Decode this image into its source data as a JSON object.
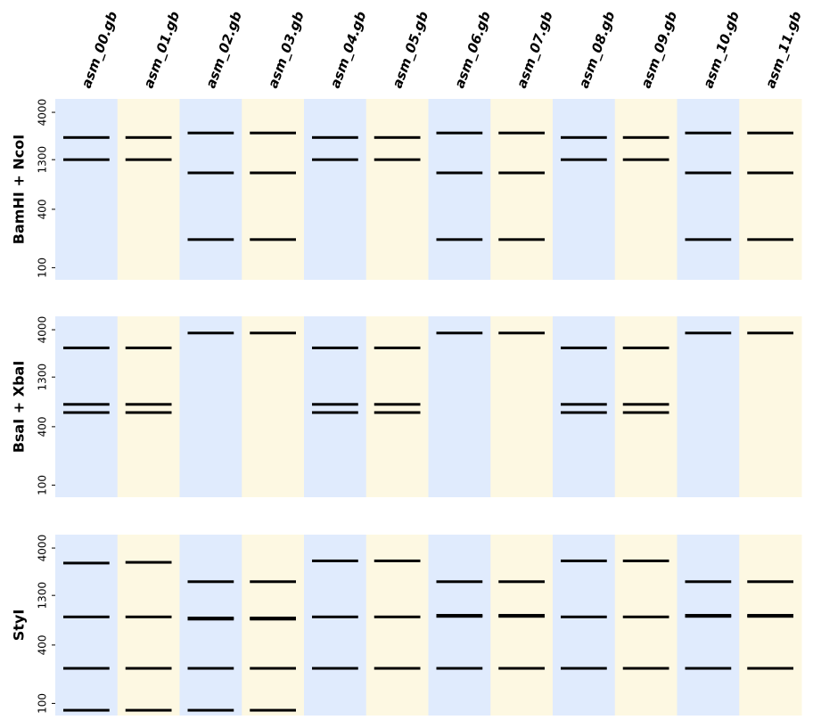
{
  "chart_data": {
    "type": "gel",
    "y_scale": "log",
    "ylim": [
      75,
      5500
    ],
    "y_ticks": [
      100,
      400,
      1300,
      4000
    ],
    "y_tick_labels": [
      "100",
      "400",
      "1300",
      "4000"
    ],
    "lanes": [
      "asm_00.gb",
      "asm_01.gb",
      "asm_02.gb",
      "asm_03.gb",
      "asm_04.gb",
      "asm_05.gb",
      "asm_06.gb",
      "asm_07.gb",
      "asm_08.gb",
      "asm_09.gb",
      "asm_10.gb",
      "asm_11.gb"
    ],
    "lane_colors": [
      "#e0ebfd",
      "#fdf8e2"
    ],
    "panels": [
      {
        "label": "BamHI + NcoI",
        "bands": [
          [
            2200,
            1300
          ],
          [
            2200,
            1300
          ],
          [
            2450,
            950,
            195
          ],
          [
            2450,
            950,
            195
          ],
          [
            2200,
            1300
          ],
          [
            2200,
            1300
          ],
          [
            2450,
            950,
            195
          ],
          [
            2450,
            950,
            195
          ],
          [
            2200,
            1300
          ],
          [
            2200,
            1300
          ],
          [
            2450,
            950,
            195
          ],
          [
            2450,
            950,
            195
          ]
        ]
      },
      {
        "label": "BsaI + XbaI",
        "bands": [
          [
            2600,
            680,
            560
          ],
          [
            2600,
            680,
            560
          ],
          [
            3700
          ],
          [
            3700
          ],
          [
            2600,
            680,
            560
          ],
          [
            2600,
            680,
            560
          ],
          [
            3700
          ],
          [
            3700
          ],
          [
            2600,
            680,
            560
          ],
          [
            2600,
            680,
            560
          ],
          [
            3700
          ],
          [
            3700
          ]
        ]
      },
      {
        "label": "StyI",
        "bands": [
          [
            2800,
            780,
            230,
            85
          ],
          [
            2850,
            780,
            230,
            85
          ],
          [
            1800,
            760,
            740,
            230,
            85
          ],
          [
            1800,
            760,
            740,
            230,
            85
          ],
          [
            2950,
            780,
            230
          ],
          [
            2950,
            780,
            230
          ],
          [
            1800,
            810,
            790,
            230
          ],
          [
            1800,
            810,
            790,
            230
          ],
          [
            2950,
            780,
            230
          ],
          [
            2950,
            780,
            230
          ],
          [
            1800,
            810,
            790,
            230
          ],
          [
            1800,
            810,
            790,
            230
          ]
        ]
      }
    ]
  }
}
